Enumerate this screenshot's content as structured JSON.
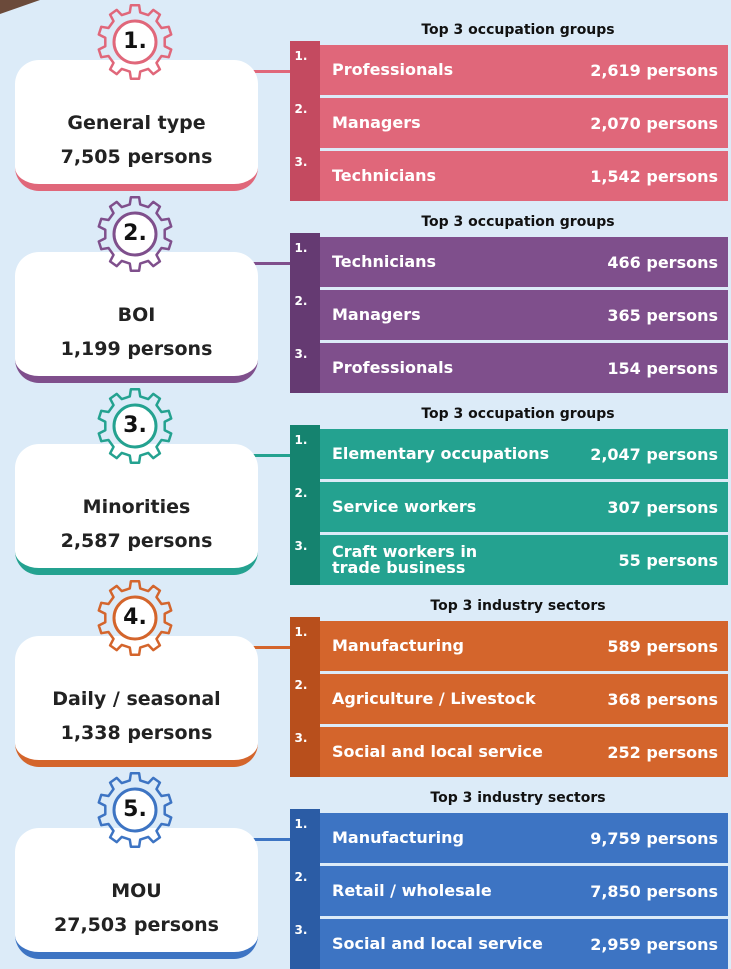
{
  "sections": [
    {
      "number": "1.",
      "label": "General type",
      "total": "7,505 persons",
      "heading": "Top 3 occupation groups",
      "items": [
        {
          "rank": "1.",
          "name": "Professionals",
          "count": "2,619 persons"
        },
        {
          "rank": "2.",
          "name": "Managers",
          "count": "2,070 persons"
        },
        {
          "rank": "3.",
          "name": "Technicians",
          "count": "1,542 persons"
        }
      ]
    },
    {
      "number": "2.",
      "label": "BOI",
      "total": "1,199 persons",
      "heading": "Top 3 occupation groups",
      "items": [
        {
          "rank": "1.",
          "name": "Technicians",
          "count": "466 persons"
        },
        {
          "rank": "2.",
          "name": "Managers",
          "count": "365 persons"
        },
        {
          "rank": "3.",
          "name": "Professionals",
          "count": "154 persons"
        }
      ]
    },
    {
      "number": "3.",
      "label": "Minorities",
      "total": "2,587 persons",
      "heading": "Top 3 occupation groups",
      "items": [
        {
          "rank": "1.",
          "name": "Elementary occupations",
          "count": "2,047 persons"
        },
        {
          "rank": "2.",
          "name": "Service workers",
          "count": "307 persons"
        },
        {
          "rank": "3.",
          "name": "Craft workers in\ntrade business",
          "count": "55 persons"
        }
      ]
    },
    {
      "number": "4.",
      "label": "Daily / seasonal",
      "total": "1,338 persons",
      "heading": "Top 3 industry sectors",
      "items": [
        {
          "rank": "1.",
          "name": "Manufacturing",
          "count": "589 persons"
        },
        {
          "rank": "2.",
          "name": "Agriculture / Livestock",
          "count": "368 persons"
        },
        {
          "rank": "3.",
          "name": "Social and local service",
          "count": "252 persons"
        }
      ]
    },
    {
      "number": "5.",
      "label": "MOU",
      "total": "27,503 persons",
      "heading": "Top 3 industry sectors",
      "items": [
        {
          "rank": "1.",
          "name": "Manufacturing",
          "count": "9,759 persons"
        },
        {
          "rank": "2.",
          "name": "Retail / wholesale",
          "count": "7,850 persons"
        },
        {
          "rank": "3.",
          "name": "Social and local service",
          "count": "2,959 persons"
        }
      ]
    }
  ]
}
